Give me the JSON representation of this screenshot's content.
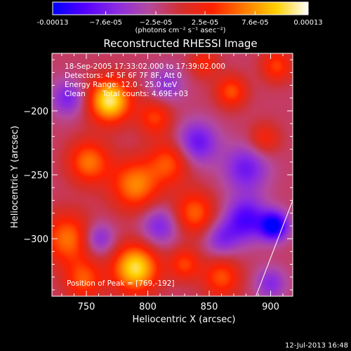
{
  "colorbar": {
    "ticks": [
      {
        "value": -0.00013,
        "label": "-0.00013"
      },
      {
        "value": -7.6e-05,
        "label": "−7.6e-05"
      },
      {
        "value": -2.5e-05,
        "label": "−2.5e-05"
      },
      {
        "value": 2.5e-05,
        "label": "2.5e-05"
      },
      {
        "value": 7.6e-05,
        "label": "7.6e-05"
      },
      {
        "value": 0.00013,
        "label": "0.00013"
      }
    ],
    "unit_label": "(photons cm⁻² s⁻¹ asec⁻²)",
    "colors": [
      "#0000ff",
      "#5500ff",
      "#8a2be2",
      "#b44aa0",
      "#d23030",
      "#ff2000",
      "#ff7a00",
      "#ffd000",
      "#ffffff"
    ]
  },
  "annotations": {
    "line1": "18-Sep-2005 17:33:02.000 to 17:39:02.000",
    "line2": "Detectors: 4F 5F 6F 7F 8F, Att 0",
    "line3": "Energy Range: 12.0 - 25.0 keV",
    "line4a": "Clean",
    "line4b": "Total counts: 4.69E+03",
    "peak": "Position of Peak = [769,-192]"
  },
  "timestamp": "12-Jul-2013 16:48",
  "chart_data": {
    "type": "heatmap",
    "title": "Reconstructed RHESSI Image",
    "xlabel": "Heliocentric X (arcsec)",
    "ylabel": "Heliocentric Y (arcsec)",
    "xlim": [
      722,
      918
    ],
    "ylim": [
      -345,
      -155
    ],
    "xticks": [
      750,
      800,
      850,
      900
    ],
    "yticks": [
      -200,
      -250,
      -300
    ],
    "zlim": [
      -0.00013,
      0.00013
    ],
    "peak_position": [
      769,
      -192
    ],
    "sources": [
      {
        "x": 769,
        "y": -192,
        "amp": 1.0,
        "sigma": 12
      },
      {
        "x": 790,
        "y": -323,
        "amp": 0.95,
        "sigma": 13
      },
      {
        "x": 752,
        "y": -240,
        "amp": 0.6,
        "sigma": 12
      },
      {
        "x": 790,
        "y": -258,
        "amp": 0.65,
        "sigma": 14
      },
      {
        "x": 818,
        "y": -240,
        "amp": 0.5,
        "sigma": 12
      },
      {
        "x": 838,
        "y": -280,
        "amp": 0.55,
        "sigma": 12
      },
      {
        "x": 806,
        "y": -205,
        "amp": 0.45,
        "sigma": 10
      },
      {
        "x": 735,
        "y": -300,
        "amp": 0.6,
        "sigma": 14
      },
      {
        "x": 748,
        "y": -332,
        "amp": 0.5,
        "sigma": 11
      },
      {
        "x": 868,
        "y": -185,
        "amp": 0.5,
        "sigma": 9
      },
      {
        "x": 905,
        "y": -165,
        "amp": 0.45,
        "sigma": 9
      },
      {
        "x": 860,
        "y": -330,
        "amp": 0.5,
        "sigma": 11
      },
      {
        "x": 895,
        "y": -222,
        "amp": 0.35,
        "sigma": 9
      },
      {
        "x": 830,
        "y": -320,
        "amp": 0.45,
        "sigma": 9
      },
      {
        "x": 846,
        "y": -163,
        "amp": 0.35,
        "sigma": 8
      },
      {
        "x": 880,
        "y": -285,
        "amp": -0.65,
        "sigma": 12
      },
      {
        "x": 903,
        "y": -290,
        "amp": -0.9,
        "sigma": 8
      },
      {
        "x": 840,
        "y": -225,
        "amp": -0.55,
        "sigma": 12
      },
      {
        "x": 880,
        "y": -245,
        "amp": -0.5,
        "sigma": 13
      },
      {
        "x": 810,
        "y": -290,
        "amp": -0.45,
        "sigma": 11
      },
      {
        "x": 760,
        "y": -300,
        "amp": -0.45,
        "sigma": 9
      },
      {
        "x": 735,
        "y": -190,
        "amp": -0.45,
        "sigma": 10
      },
      {
        "x": 860,
        "y": -300,
        "amp": -0.4,
        "sigma": 10
      },
      {
        "x": 815,
        "y": -180,
        "amp": -0.35,
        "sigma": 10
      },
      {
        "x": 900,
        "y": -335,
        "amp": -0.4,
        "sigma": 9
      }
    ],
    "limb_line": [
      [
        888,
        -345
      ],
      [
        918,
        -270
      ]
    ]
  }
}
